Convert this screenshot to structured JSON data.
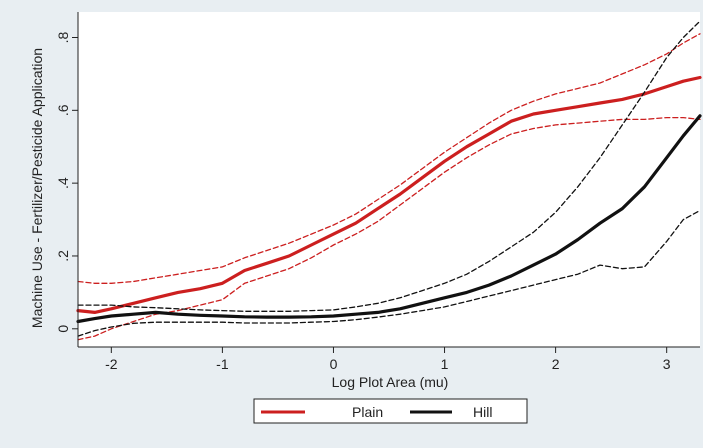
{
  "chart_data": {
    "type": "line",
    "xlabel": "Log Plot Area (mu)",
    "ylabel": "Machine Use - Fertilizer/Pesticide Application",
    "xlim": [
      -2.3,
      3.3
    ],
    "ylim": [
      -0.05,
      0.87
    ],
    "xticks": [
      -2,
      -1,
      0,
      1,
      2,
      3
    ],
    "yticks": [
      0,
      0.2,
      0.4,
      0.6,
      0.8
    ],
    "xtick_labels": [
      "-2",
      "-1",
      "0",
      "1",
      "2",
      "3"
    ],
    "ytick_labels": [
      "0",
      ".2",
      ".4",
      ".6",
      ".8"
    ],
    "grid": false,
    "legend_position": "bottom",
    "series": [
      {
        "name": "Plain",
        "color": "#cc1f1f",
        "style": "solid",
        "x": [
          -2.3,
          -2.15,
          -2.0,
          -1.8,
          -1.6,
          -1.4,
          -1.2,
          -1.0,
          -0.8,
          -0.6,
          -0.4,
          -0.2,
          0.0,
          0.2,
          0.4,
          0.6,
          0.8,
          1.0,
          1.2,
          1.4,
          1.6,
          1.8,
          2.0,
          2.2,
          2.4,
          2.6,
          2.8,
          3.0,
          3.15,
          3.3
        ],
        "values": [
          0.05,
          0.045,
          0.055,
          0.07,
          0.085,
          0.1,
          0.11,
          0.125,
          0.16,
          0.18,
          0.2,
          0.23,
          0.26,
          0.29,
          0.33,
          0.37,
          0.415,
          0.46,
          0.5,
          0.535,
          0.57,
          0.59,
          0.6,
          0.61,
          0.62,
          0.63,
          0.645,
          0.665,
          0.68,
          0.69
        ]
      },
      {
        "name": "Plain upper CI",
        "color": "#cc1f1f",
        "style": "dashed",
        "x": [
          -2.3,
          -2.15,
          -2.0,
          -1.8,
          -1.6,
          -1.4,
          -1.2,
          -1.0,
          -0.8,
          -0.6,
          -0.4,
          -0.2,
          0.0,
          0.2,
          0.4,
          0.6,
          0.8,
          1.0,
          1.2,
          1.4,
          1.6,
          1.8,
          2.0,
          2.2,
          2.4,
          2.6,
          2.8,
          3.0,
          3.15,
          3.3
        ],
        "values": [
          0.13,
          0.125,
          0.125,
          0.13,
          0.14,
          0.15,
          0.16,
          0.17,
          0.195,
          0.215,
          0.235,
          0.26,
          0.285,
          0.315,
          0.355,
          0.395,
          0.44,
          0.485,
          0.525,
          0.565,
          0.6,
          0.625,
          0.645,
          0.66,
          0.675,
          0.7,
          0.725,
          0.755,
          0.785,
          0.81
        ]
      },
      {
        "name": "Plain lower CI",
        "color": "#cc1f1f",
        "style": "dashed",
        "x": [
          -2.3,
          -2.15,
          -2.0,
          -1.8,
          -1.6,
          -1.4,
          -1.2,
          -1.0,
          -0.8,
          -0.6,
          -0.4,
          -0.2,
          0.0,
          0.2,
          0.4,
          0.6,
          0.8,
          1.0,
          1.2,
          1.4,
          1.6,
          1.8,
          2.0,
          2.2,
          2.4,
          2.6,
          2.8,
          3.0,
          3.15,
          3.3
        ],
        "values": [
          -0.03,
          -0.02,
          0.0,
          0.02,
          0.04,
          0.05,
          0.065,
          0.08,
          0.125,
          0.145,
          0.165,
          0.195,
          0.23,
          0.26,
          0.295,
          0.34,
          0.385,
          0.43,
          0.47,
          0.505,
          0.535,
          0.55,
          0.56,
          0.565,
          0.57,
          0.575,
          0.575,
          0.58,
          0.58,
          0.575
        ]
      },
      {
        "name": "Hill",
        "color": "#111111",
        "style": "solid",
        "x": [
          -2.3,
          -2.15,
          -2.0,
          -1.8,
          -1.6,
          -1.4,
          -1.2,
          -1.0,
          -0.8,
          -0.6,
          -0.4,
          -0.2,
          0.0,
          0.2,
          0.4,
          0.6,
          0.8,
          1.0,
          1.2,
          1.4,
          1.6,
          1.8,
          2.0,
          2.2,
          2.4,
          2.6,
          2.8,
          3.0,
          3.15,
          3.3
        ],
        "values": [
          0.02,
          0.028,
          0.035,
          0.04,
          0.045,
          0.04,
          0.037,
          0.035,
          0.033,
          0.032,
          0.032,
          0.033,
          0.035,
          0.04,
          0.045,
          0.055,
          0.07,
          0.085,
          0.1,
          0.12,
          0.145,
          0.175,
          0.205,
          0.245,
          0.29,
          0.33,
          0.39,
          0.47,
          0.53,
          0.585
        ]
      },
      {
        "name": "Hill upper CI",
        "color": "#111111",
        "style": "dashed",
        "x": [
          -2.3,
          -2.15,
          -2.0,
          -1.8,
          -1.6,
          -1.4,
          -1.2,
          -1.0,
          -0.8,
          -0.6,
          -0.4,
          -0.2,
          0.0,
          0.2,
          0.4,
          0.6,
          0.8,
          1.0,
          1.2,
          1.4,
          1.6,
          1.8,
          2.0,
          2.2,
          2.4,
          2.6,
          2.8,
          3.0,
          3.15,
          3.3
        ],
        "values": [
          0.065,
          0.065,
          0.065,
          0.06,
          0.058,
          0.055,
          0.052,
          0.05,
          0.048,
          0.048,
          0.048,
          0.05,
          0.052,
          0.06,
          0.07,
          0.085,
          0.105,
          0.125,
          0.15,
          0.185,
          0.225,
          0.265,
          0.32,
          0.39,
          0.47,
          0.56,
          0.65,
          0.745,
          0.8,
          0.845
        ]
      },
      {
        "name": "Hill lower CI",
        "color": "#111111",
        "style": "dashed",
        "x": [
          -2.3,
          -2.15,
          -2.0,
          -1.8,
          -1.6,
          -1.4,
          -1.2,
          -1.0,
          -0.8,
          -0.6,
          -0.4,
          -0.2,
          0.0,
          0.2,
          0.4,
          0.6,
          0.8,
          1.0,
          1.2,
          1.4,
          1.6,
          1.8,
          2.0,
          2.2,
          2.4,
          2.6,
          2.8,
          3.0,
          3.15,
          3.3
        ],
        "values": [
          -0.02,
          -0.005,
          0.005,
          0.015,
          0.018,
          0.018,
          0.018,
          0.018,
          0.016,
          0.016,
          0.016,
          0.018,
          0.02,
          0.025,
          0.032,
          0.04,
          0.05,
          0.06,
          0.075,
          0.09,
          0.105,
          0.12,
          0.135,
          0.15,
          0.175,
          0.165,
          0.17,
          0.24,
          0.3,
          0.325
        ]
      }
    ],
    "legend": [
      "Plain",
      "Hill"
    ]
  }
}
